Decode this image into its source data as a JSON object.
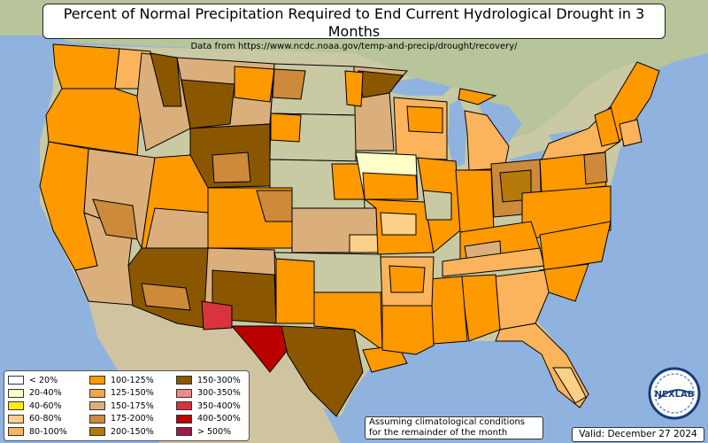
{
  "title": "Percent of Normal Precipitation Required to End Current Hydrological Drought in 3 Months",
  "subtitle": "Data from https://www.ncdc.noaa.gov/temp-and-precip/drought/recovery/",
  "legend": {
    "col1": [
      {
        "label": "< 20%",
        "color": "#ffffff"
      },
      {
        "label": "20-40%",
        "color": "#ffffc8"
      },
      {
        "label": "40-60%",
        "color": "#ffee00"
      },
      {
        "label": "60-80%",
        "color": "#fdd08a"
      },
      {
        "label": "80-100%",
        "color": "#fbb45c"
      }
    ],
    "col2": [
      {
        "label": "100-125%",
        "color": "#ff9900"
      },
      {
        "label": "125-150%",
        "color": "#f5a54a"
      },
      {
        "label": "150-175%",
        "color": "#dbaf7c"
      },
      {
        "label": "175-200%",
        "color": "#cc8a3a"
      },
      {
        "label": "200-150%",
        "color": "#b5780a"
      }
    ],
    "col3": [
      {
        "label": "150-300%",
        "color": "#8a5700"
      },
      {
        "label": "300-350%",
        "color": "#f0888a"
      },
      {
        "label": "350-400%",
        "color": "#d9343d"
      },
      {
        "label": "400-500%",
        "color": "#bb0000"
      },
      {
        "label": "> 500%",
        "color": "#9b1a4a"
      }
    ]
  },
  "assumption_line1": "Assuming climatological conditions",
  "assumption_line2": "for the remainder of the month",
  "valid": "Valid: December 27 2024",
  "logo_text": "NEXLAB",
  "colors": {
    "ocean": "#8fb3de",
    "land": "#c9c9a4",
    "land_green": "#9fb57e",
    "border": "#000000"
  }
}
